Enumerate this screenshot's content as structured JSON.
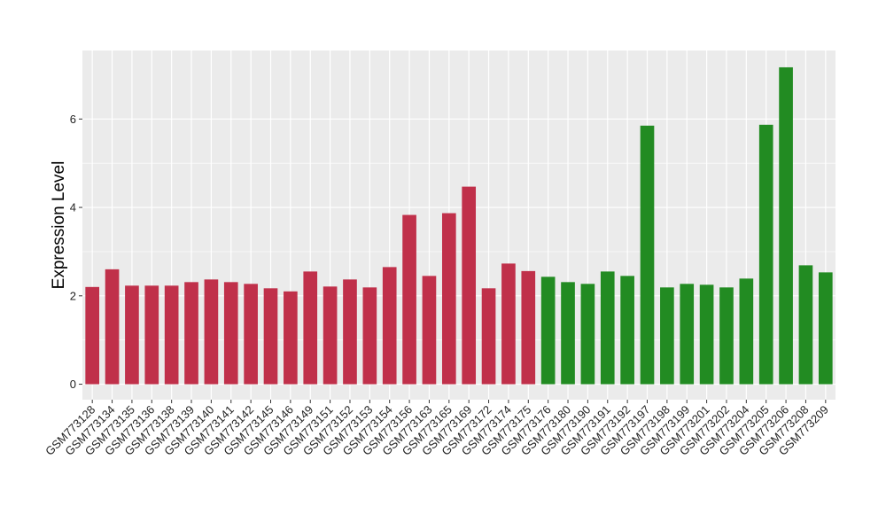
{
  "chart_data": {
    "type": "bar",
    "title": "",
    "xlabel": "",
    "ylabel": "Expression Level",
    "ylim": [
      -0.35,
      7.55
    ],
    "yticks": [
      0,
      2,
      4,
      6
    ],
    "grid": true,
    "legend": "none",
    "colors": {
      "red_group": "#c0304a",
      "green_group": "#228b22",
      "panel": "#ebebeb",
      "grid": "#ffffff"
    },
    "categories": [
      "GSM773128",
      "GSM773134",
      "GSM773135",
      "GSM773136",
      "GSM773138",
      "GSM773139",
      "GSM773140",
      "GSM773141",
      "GSM773142",
      "GSM773145",
      "GSM773146",
      "GSM773149",
      "GSM773151",
      "GSM773152",
      "GSM773153",
      "GSM773154",
      "GSM773156",
      "GSM773163",
      "GSM773165",
      "GSM773169",
      "GSM773172",
      "GSM773174",
      "GSM773175",
      "GSM773176",
      "GSM773180",
      "GSM773190",
      "GSM773191",
      "GSM773192",
      "GSM773197",
      "GSM773198",
      "GSM773199",
      "GSM773201",
      "GSM773202",
      "GSM773204",
      "GSM773205",
      "GSM773206",
      "GSM773208",
      "GSM773209"
    ],
    "values": [
      2.2,
      2.6,
      2.23,
      2.23,
      2.23,
      2.31,
      2.37,
      2.31,
      2.27,
      2.17,
      2.1,
      2.55,
      2.21,
      2.37,
      2.19,
      2.65,
      3.83,
      2.45,
      3.87,
      4.47,
      2.17,
      2.73,
      2.56,
      2.43,
      2.31,
      2.27,
      2.55,
      2.45,
      5.85,
      2.19,
      2.27,
      2.25,
      2.19,
      2.39,
      5.87,
      7.17,
      2.69,
      2.53
    ],
    "groups": [
      "red",
      "red",
      "red",
      "red",
      "red",
      "red",
      "red",
      "red",
      "red",
      "red",
      "red",
      "red",
      "red",
      "red",
      "red",
      "red",
      "red",
      "red",
      "red",
      "red",
      "red",
      "red",
      "red",
      "green",
      "green",
      "green",
      "green",
      "green",
      "green",
      "green",
      "green",
      "green",
      "green",
      "green",
      "green",
      "green",
      "green",
      "green"
    ]
  }
}
